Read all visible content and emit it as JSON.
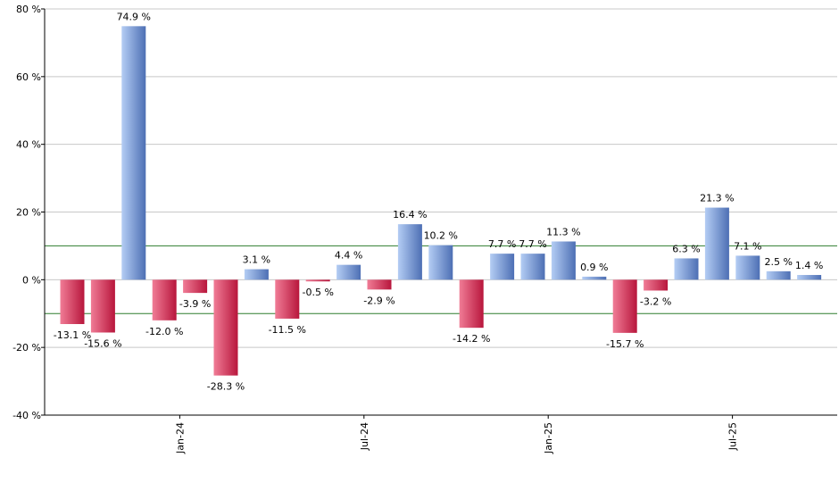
{
  "chart_data": {
    "type": "bar",
    "title": "",
    "xlabel": "",
    "ylabel": "",
    "ylim": [
      -40,
      80
    ],
    "y_ticks": [
      80,
      60,
      40,
      20,
      0,
      -20,
      -40
    ],
    "y_tick_suffix": " %",
    "grid": true,
    "reference_lines": [
      10,
      -10
    ],
    "x_tick_labels": [
      {
        "label": "Jan-24",
        "after_index": 3
      },
      {
        "label": "Jul-24",
        "after_index": 9
      },
      {
        "label": "Jan-25",
        "after_index": 15
      },
      {
        "label": "Jul-25",
        "after_index": 21
      }
    ],
    "values": [
      -13.1,
      -15.6,
      74.9,
      -12.0,
      -3.9,
      -28.3,
      3.1,
      -11.5,
      -0.5,
      4.4,
      -2.9,
      16.4,
      10.2,
      -14.2,
      7.7,
      7.7,
      11.3,
      0.9,
      -15.7,
      -3.2,
      6.3,
      21.3,
      7.1,
      2.5,
      1.4
    ],
    "data_labels": [
      "-13.1 %",
      "-15.6 %",
      "74.9 %",
      "-12.0 %",
      "-3.9 %",
      "-28.3 %",
      "3.1 %",
      "-11.5 %",
      "-0.5 %",
      "4.4 %",
      "-2.9 %",
      "16.4 %",
      "10.2 %",
      "-14.2 %",
      "7.7 %",
      "7.7 %",
      "11.3 %",
      "0.9 %",
      "-15.7 %",
      "-3.2 %",
      "6.3 %",
      "21.3 %",
      "7.1 %",
      "2.5 %",
      "1.4 %"
    ],
    "colors": {
      "positive_light": "#b4cdf4",
      "positive_dark": "#4d6fb4",
      "negative_light": "#f07c96",
      "negative_dark": "#b8163c",
      "reference_line": "#2e7d2e",
      "grid": "#c8c8c8",
      "axis": "#000000"
    }
  }
}
